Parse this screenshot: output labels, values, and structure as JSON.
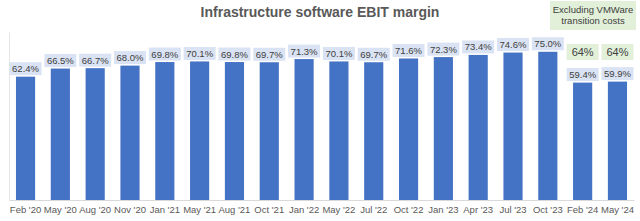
{
  "chart_data": {
    "type": "bar",
    "title": "Infrastructure software EBIT margin",
    "categories": [
      "Feb '20",
      "May '20",
      "Aug '20",
      "Nov '20",
      "Jan '21",
      "May '21",
      "Aug '21",
      "Oct '21",
      "Jan '22",
      "May '22",
      "Jul '22",
      "Oct '22",
      "Jan '23",
      "Apr '23",
      "Jul '23",
      "Oct '23",
      "Feb '24",
      "May '24"
    ],
    "values": [
      62.4,
      66.5,
      66.7,
      68.0,
      69.8,
      70.1,
      69.8,
      69.7,
      71.3,
      70.1,
      69.7,
      71.6,
      72.3,
      73.4,
      74.6,
      75.0,
      59.4,
      59.9
    ],
    "value_labels": [
      "62.4%",
      "66.5%",
      "66.7%",
      "68.0%",
      "69.8%",
      "70.1%",
      "69.8%",
      "69.7%",
      "71.3%",
      "70.1%",
      "69.7%",
      "71.6%",
      "72.3%",
      "73.4%",
      "74.6%",
      "75.0%",
      "59.4%",
      "59.9%"
    ],
    "color": "#4472c4",
    "ylim": [
      0,
      85
    ],
    "grid": false,
    "data_labels": true,
    "tick_labels": "x",
    "annotations": [
      {
        "text": "Excluding VMWare transition costs"
      },
      {
        "text": "64%",
        "x": "Feb '24"
      },
      {
        "text": "64%",
        "x": "May '24"
      }
    ]
  }
}
